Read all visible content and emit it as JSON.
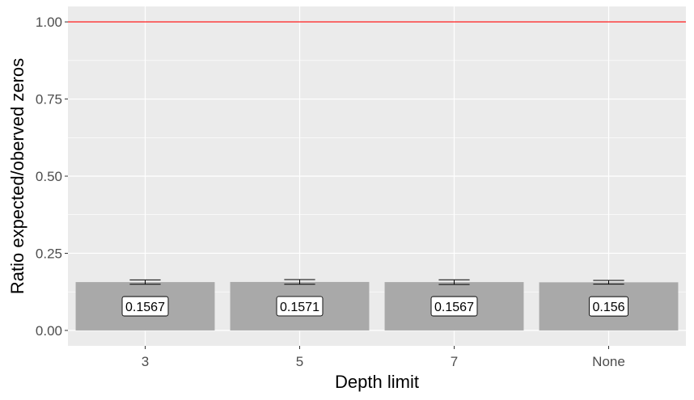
{
  "chart_data": {
    "type": "bar",
    "categories": [
      "3",
      "5",
      "7",
      "None"
    ],
    "values": [
      0.1567,
      0.1571,
      0.1567,
      0.156
    ],
    "error_bars": [
      {
        "low": 0.1497,
        "high": 0.1637
      },
      {
        "low": 0.1496,
        "high": 0.1646
      },
      {
        "low": 0.1492,
        "high": 0.1642
      },
      {
        "low": 0.15,
        "high": 0.162
      }
    ],
    "data_labels": [
      "0.1567",
      "0.1571",
      "0.1567",
      "0.156"
    ],
    "reference_line": {
      "y": 1.0,
      "color": "#ff0000"
    },
    "xlabel": "Depth limit",
    "ylabel": "Ratio expected/oberved zeros",
    "ylim": [
      -0.05,
      1.05
    ],
    "y_ticks": [
      0.0,
      0.25,
      0.5,
      0.75,
      1.0
    ],
    "y_tick_labels": [
      "0.00",
      "0.25",
      "0.50",
      "0.75",
      "1.00"
    ],
    "grid": true,
    "colors": {
      "panel_background": "#ebebeb",
      "grid_major": "#ffffff",
      "bar_fill": "#a9a9a9",
      "error_bar": "#000000",
      "label_fill": "#ffffff",
      "label_border": "#000000"
    }
  }
}
